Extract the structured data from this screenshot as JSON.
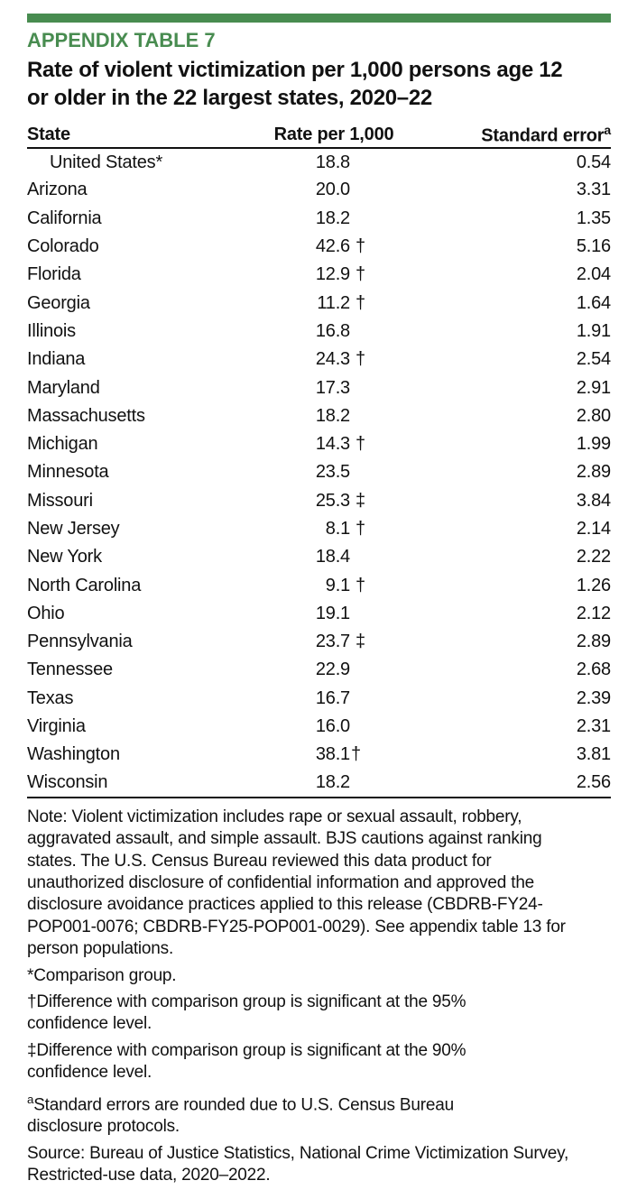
{
  "colors": {
    "accent_green": "#488C50",
    "text": "#111111"
  },
  "header": {
    "kicker": "APPENDIX TABLE 7",
    "title": "Rate of violent victimization per 1,000 persons age 12\nor older in the 22 largest states, 2020–22"
  },
  "table": {
    "columns": [
      {
        "label": "State"
      },
      {
        "label": "Rate per 1,000"
      },
      {
        "label": "Standard error",
        "sup": "a"
      }
    ],
    "rows": [
      {
        "state": "United States*",
        "indent": true,
        "rate": "18.8",
        "marker": "",
        "se": "0.54"
      },
      {
        "state": "Arizona",
        "rate": "20.0",
        "marker": "",
        "se": "3.31"
      },
      {
        "state": "California",
        "rate": "18.2",
        "marker": "",
        "se": "1.35"
      },
      {
        "state": "Colorado",
        "rate": "42.6",
        "marker": "†",
        "se": "5.16"
      },
      {
        "state": "Florida",
        "rate": "12.9",
        "marker": "†",
        "se": "2.04"
      },
      {
        "state": "Georgia",
        "rate": "11.2",
        "marker": "†",
        "se": "1.64"
      },
      {
        "state": "Illinois",
        "rate": "16.8",
        "marker": "",
        "se": "1.91"
      },
      {
        "state": "Indiana",
        "rate": "24.3",
        "marker": "†",
        "se": "2.54"
      },
      {
        "state": "Maryland",
        "rate": "17.3",
        "marker": "",
        "se": "2.91"
      },
      {
        "state": "Massachusetts",
        "rate": "18.2",
        "marker": "",
        "se": "2.80"
      },
      {
        "state": "Michigan",
        "rate": "14.3",
        "marker": "†",
        "se": "1.99"
      },
      {
        "state": "Minnesota",
        "rate": "23.5",
        "marker": "",
        "se": "2.89"
      },
      {
        "state": "Missouri",
        "rate": "25.3",
        "marker": "‡",
        "se": "3.84"
      },
      {
        "state": "New Jersey",
        "rate": "8.1",
        "marker": "†",
        "se": "2.14"
      },
      {
        "state": "New York",
        "rate": "18.4",
        "marker": "",
        "se": "2.22"
      },
      {
        "state": "North Carolina",
        "rate": "9.1",
        "marker": "†",
        "se": "1.26"
      },
      {
        "state": "Ohio",
        "rate": "19.1",
        "marker": "",
        "se": "2.12"
      },
      {
        "state": "Pennsylvania",
        "rate": "23.7",
        "marker": "‡",
        "se": "2.89"
      },
      {
        "state": "Tennessee",
        "rate": "22.9",
        "marker": "",
        "se": "2.68"
      },
      {
        "state": "Texas",
        "rate": "16.7",
        "marker": "",
        "se": "2.39"
      },
      {
        "state": "Virginia",
        "rate": "16.0",
        "marker": "",
        "se": "2.31"
      },
      {
        "state": "Washington",
        "rate": "38.1",
        "marker": "†",
        "tight": true,
        "se": "3.81"
      },
      {
        "state": "Wisconsin",
        "rate": "18.2",
        "marker": "",
        "se": "2.56"
      }
    ]
  },
  "notes": {
    "note": "Note: Violent victimization includes rape or sexual assault, robbery,\naggravated assault, and simple assault. BJS cautions against ranking\nstates. The U.S. Census Bureau reviewed this data product for\nunauthorized disclosure of confidential information and approved the\ndisclosure avoidance practices applied to this release (CBDRB-FY24-\nPOP001-0076; CBDRB-FY25-POP001-0029). See appendix table 13 for\nperson populations.",
    "comparison": "*Comparison group.",
    "dagger": "†Difference with comparison group is significant at the 95%\nconfidence level.",
    "double_dagger": "‡Difference with comparison group is significant at the 90%\nconfidence level.",
    "se_sup": "a",
    "se_note": "Standard errors are rounded due to U.S. Census Bureau\ndisclosure protocols.",
    "source": "Source: Bureau of Justice Statistics, National Crime Victimization Survey,\nRestricted-use data, 2020–2022."
  }
}
